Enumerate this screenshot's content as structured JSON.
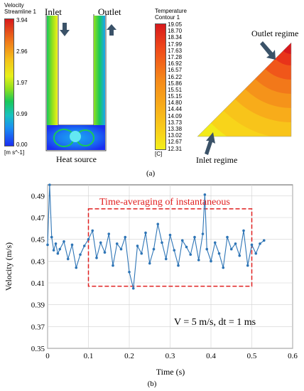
{
  "panel_a": {
    "caption": "(a)",
    "velocity": {
      "title_line1": "Velocity",
      "title_line2": "Streamline 1",
      "ticks": [
        "3.94",
        "2.96",
        "1.97",
        "0.99",
        "0.00"
      ],
      "unit": "[m s^-1]",
      "inlet_label": "Inlet",
      "outlet_label": "Outlet",
      "heat_label": "Heat source",
      "colors": [
        "#d7191c",
        "#f4a41a",
        "#f2f01a",
        "#19c85a",
        "#1aa6f2",
        "#1a2ff2"
      ]
    },
    "temperature": {
      "title_line1": "Temperature",
      "title_line2": "Contour 1",
      "ticks": [
        "19.05",
        "18.70",
        "18.34",
        "17.99",
        "17.63",
        "17.28",
        "16.92",
        "16.57",
        "16.22",
        "15.86",
        "15.51",
        "15.15",
        "14.80",
        "14.44",
        "14.09",
        "13.73",
        "13.38",
        "13.02",
        "12.67",
        "12.31"
      ],
      "unit": "[C]",
      "outlet_regime": "Outlet regime",
      "inlet_regime": "Inlet regime"
    }
  },
  "panel_b": {
    "caption": "(b)",
    "annotation_box": "Time-averaging of instantaneous",
    "annotation_params": "V = 5 m/s, dt = 1 ms",
    "series_color": "#2e75b6",
    "box_color": "#e02020"
  },
  "chart_data": {
    "type": "line",
    "xlabel": "Time (s)",
    "ylabel": "Velocity (m/s)",
    "xlim": [
      0,
      0.6
    ],
    "ylim": [
      0.35,
      0.5
    ],
    "xticks": [
      "0",
      "0.1",
      "0.2",
      "0.3",
      "0.4",
      "0.5",
      "0.6"
    ],
    "yticks": [
      "0.35",
      "0.37",
      "0.39",
      "0.41",
      "0.43",
      "0.45",
      "0.47",
      "0.49"
    ],
    "averaging_window": [
      0.1,
      0.5
    ],
    "series": [
      {
        "x": [
          0.0,
          0.005,
          0.01,
          0.015,
          0.02,
          0.025,
          0.03,
          0.04,
          0.05,
          0.06,
          0.07,
          0.08,
          0.09,
          0.1,
          0.11,
          0.12,
          0.13,
          0.14,
          0.15,
          0.16,
          0.17,
          0.18,
          0.19,
          0.2,
          0.21,
          0.22,
          0.23,
          0.24,
          0.25,
          0.26,
          0.27,
          0.28,
          0.29,
          0.3,
          0.31,
          0.32,
          0.33,
          0.34,
          0.35,
          0.36,
          0.37,
          0.38,
          0.385,
          0.39,
          0.4,
          0.41,
          0.42,
          0.43,
          0.44,
          0.45,
          0.46,
          0.47,
          0.48,
          0.49,
          0.5,
          0.51,
          0.52,
          0.53
        ],
        "y": [
          0.445,
          0.5,
          0.452,
          0.44,
          0.446,
          0.437,
          0.441,
          0.448,
          0.432,
          0.445,
          0.424,
          0.436,
          0.444,
          0.45,
          0.458,
          0.433,
          0.447,
          0.438,
          0.455,
          0.426,
          0.446,
          0.441,
          0.452,
          0.42,
          0.405,
          0.444,
          0.437,
          0.456,
          0.428,
          0.441,
          0.464,
          0.447,
          0.432,
          0.454,
          0.44,
          0.426,
          0.449,
          0.443,
          0.436,
          0.452,
          0.431,
          0.455,
          0.491,
          0.441,
          0.43,
          0.447,
          0.437,
          0.424,
          0.452,
          0.441,
          0.446,
          0.435,
          0.458,
          0.426,
          0.445,
          0.437,
          0.446,
          0.449
        ]
      }
    ]
  }
}
